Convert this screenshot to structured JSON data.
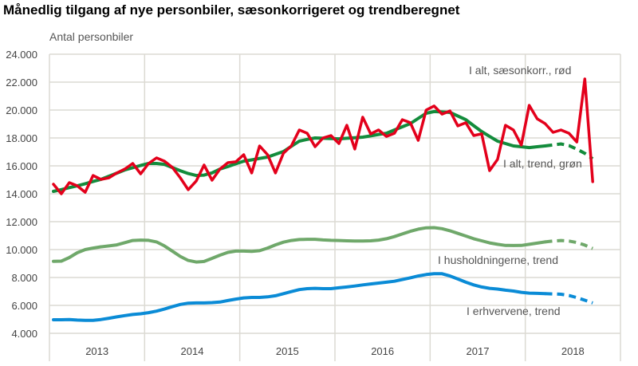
{
  "chart_data": {
    "type": "line",
    "title": "Månedlig tilgang af nye personbiler, sæsonkorrigeret og trendberegnet",
    "ylabel": "Antal personbiler",
    "xlabel": "",
    "ylim": [
      4000,
      24000
    ],
    "yticks": [
      "4.000",
      "6.000",
      "8.000",
      "10.000",
      "12.000",
      "14.000",
      "16.000",
      "18.000",
      "20.000",
      "22.000",
      "24.000"
    ],
    "xticks": [
      "2013",
      "2014",
      "2015",
      "2016",
      "2017",
      "2018"
    ],
    "x_start": "2013-01",
    "x_frequency": "monthly",
    "grid": true,
    "series": [
      {
        "name": "I alt, sæsonkorr., rød",
        "color": "#e3001b",
        "style": "solid",
        "values": [
          14686,
          14000,
          14800,
          14570,
          14110,
          15310,
          15030,
          15140,
          15490,
          15770,
          16170,
          15430,
          16170,
          16570,
          16340,
          15890,
          15140,
          14290,
          14910,
          16060,
          14970,
          15770,
          16230,
          16290,
          16800,
          15490,
          17430,
          16800,
          15490,
          16910,
          17430,
          18570,
          18340,
          17370,
          18000,
          18170,
          17600,
          18910,
          17200,
          19490,
          18290,
          18570,
          18110,
          18340,
          19310,
          19090,
          17830,
          20000,
          20290,
          19710,
          19940,
          18860,
          19090,
          18170,
          18290,
          15660,
          16460,
          18910,
          18570,
          17490,
          20340,
          19370,
          19030,
          18400,
          18570,
          18340,
          17710,
          22230,
          14860
        ]
      },
      {
        "name": "I alt, trend, grøn",
        "color": "#138c3c",
        "style": "solid-then-dashed",
        "dashed_from_index": 62,
        "values": [
          14170,
          14300,
          14440,
          14570,
          14720,
          14880,
          15030,
          15260,
          15480,
          15710,
          15870,
          16030,
          16170,
          16170,
          16110,
          15880,
          15650,
          15450,
          15310,
          15340,
          15500,
          15770,
          15950,
          16150,
          16340,
          16430,
          16530,
          16630,
          16830,
          17030,
          17400,
          17770,
          17900,
          18000,
          17980,
          17960,
          17940,
          17980,
          18020,
          18060,
          18150,
          18250,
          18340,
          18570,
          18800,
          19030,
          19400,
          19770,
          19890,
          19860,
          19830,
          19570,
          19310,
          18880,
          18460,
          18110,
          17770,
          17600,
          17430,
          17370,
          17310,
          17370,
          17430,
          17500,
          17570,
          17450,
          17200,
          16900,
          16510
        ]
      },
      {
        "name": "I husholdningerne, trend",
        "color": "#6fa86a",
        "style": "solid-then-dashed",
        "dashed_from_index": 62,
        "values": [
          9160,
          9170,
          9430,
          9770,
          10000,
          10110,
          10200,
          10260,
          10340,
          10500,
          10650,
          10680,
          10660,
          10550,
          10260,
          9890,
          9510,
          9220,
          9110,
          9150,
          9370,
          9600,
          9800,
          9890,
          9890,
          9870,
          9920,
          10110,
          10340,
          10530,
          10650,
          10720,
          10740,
          10740,
          10690,
          10660,
          10650,
          10630,
          10610,
          10610,
          10630,
          10680,
          10780,
          10930,
          11120,
          11310,
          11460,
          11560,
          11570,
          11500,
          11350,
          11160,
          10970,
          10780,
          10630,
          10480,
          10380,
          10300,
          10290,
          10300,
          10380,
          10460,
          10550,
          10610,
          10650,
          10610,
          10510,
          10320,
          10080
        ]
      },
      {
        "name": "I erhvervene, trend",
        "color": "#0a8bd6",
        "style": "solid-then-dashed",
        "dashed_from_index": 62,
        "values": [
          4970,
          4970,
          4990,
          4950,
          4930,
          4930,
          4990,
          5080,
          5180,
          5270,
          5350,
          5400,
          5480,
          5590,
          5740,
          5910,
          6070,
          6160,
          6180,
          6180,
          6200,
          6240,
          6350,
          6450,
          6540,
          6570,
          6570,
          6610,
          6690,
          6840,
          6990,
          7130,
          7200,
          7220,
          7200,
          7200,
          7260,
          7320,
          7390,
          7470,
          7540,
          7600,
          7660,
          7730,
          7850,
          7980,
          8110,
          8210,
          8270,
          8270,
          8110,
          7890,
          7660,
          7470,
          7320,
          7220,
          7170,
          7090,
          7030,
          6940,
          6880,
          6860,
          6840,
          6820,
          6800,
          6710,
          6560,
          6370,
          6180
        ]
      }
    ]
  }
}
